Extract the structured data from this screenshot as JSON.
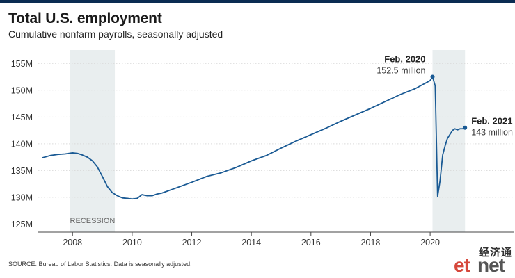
{
  "header": {
    "title": "Total U.S. employment",
    "subtitle": "Cumulative nonfarm payrolls, seasonally adjusted"
  },
  "footer": {
    "source": "SOURCE: Bureau of Labor Statistics. Data is seasonally adjusted."
  },
  "logo": {
    "chinese": "经济通",
    "prefix": "et",
    "suffix": "net"
  },
  "colors": {
    "line": "#1a5a94",
    "recession": "#e9eeef",
    "grid": "#d9d9d9",
    "brand_red": "#d6473b",
    "topbar": "#0b2c52"
  },
  "chart_data": {
    "type": "line",
    "title": "Total U.S. employment",
    "subtitle": "Cumulative nonfarm payrolls, seasonally adjusted",
    "xlabel": "",
    "ylabel": "",
    "xlim": [
      2006.85,
      2022.8
    ],
    "ylim": [
      123.5,
      157.5
    ],
    "x_ticks": [
      2008,
      2010,
      2012,
      2014,
      2016,
      2018,
      2020
    ],
    "y_ticks": [
      125,
      130,
      135,
      140,
      145,
      150,
      155
    ],
    "y_tick_labels": [
      "125M",
      "130M",
      "135M",
      "140M",
      "145M",
      "150M",
      "155M"
    ],
    "grid": true,
    "shaded_regions": [
      {
        "label": "RECESSION",
        "from": 2007.92,
        "to": 2009.42
      },
      {
        "label": "",
        "from": 2020.08,
        "to": 2021.17
      }
    ],
    "series": [
      {
        "unit": "million",
        "x": [
          2007.0,
          2007.25,
          2007.5,
          2007.75,
          2008.0,
          2008.17,
          2008.33,
          2008.5,
          2008.67,
          2008.83,
          2009.0,
          2009.17,
          2009.33,
          2009.5,
          2009.67,
          2009.83,
          2010.0,
          2010.17,
          2010.33,
          2010.5,
          2010.67,
          2010.83,
          2011.0,
          2011.5,
          2012.0,
          2012.5,
          2013.0,
          2013.5,
          2014.0,
          2014.5,
          2015.0,
          2015.5,
          2016.0,
          2016.5,
          2017.0,
          2017.5,
          2018.0,
          2018.5,
          2019.0,
          2019.5,
          2020.0,
          2020.08,
          2020.17,
          2020.25,
          2020.33,
          2020.42,
          2020.5,
          2020.58,
          2020.67,
          2020.75,
          2020.83,
          2020.92,
          2021.0,
          2021.08,
          2021.17
        ],
        "y": [
          137.4,
          137.8,
          138.0,
          138.1,
          138.3,
          138.2,
          137.9,
          137.5,
          136.8,
          135.7,
          133.9,
          132.0,
          130.9,
          130.3,
          129.9,
          129.8,
          129.7,
          129.8,
          130.5,
          130.3,
          130.3,
          130.6,
          130.8,
          131.8,
          132.8,
          133.9,
          134.6,
          135.6,
          136.8,
          137.8,
          139.2,
          140.5,
          141.7,
          142.9,
          144.2,
          145.4,
          146.6,
          147.9,
          149.2,
          150.3,
          151.8,
          152.5,
          150.8,
          130.2,
          133.0,
          137.9,
          139.6,
          141.0,
          141.8,
          142.5,
          142.8,
          142.6,
          142.8,
          142.8,
          143.0
        ]
      }
    ],
    "annotations": [
      {
        "x": 2020.08,
        "y": 152.5,
        "label": "Feb. 2020",
        "value_label": "152.5 million",
        "side": "left"
      },
      {
        "x": 2021.17,
        "y": 143.0,
        "label": "Feb. 2021",
        "value_label": "143 million",
        "side": "right"
      }
    ]
  }
}
